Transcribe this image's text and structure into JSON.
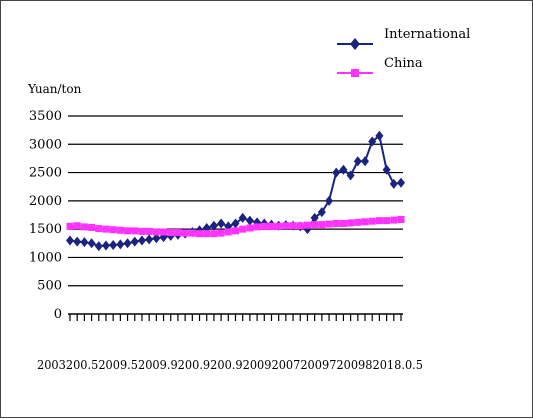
{
  "chart_data": {
    "type": "line",
    "ylabel": "Yuan/ton",
    "ylim": [
      0,
      3500
    ],
    "y_ticks": [
      "3500",
      "3000",
      "2500",
      "2000",
      "1500",
      "1000",
      "500",
      "0"
    ],
    "x_axis_text": "2003200.52009.52009.9200.9200.92009200720097200982018.0.5",
    "grid": true,
    "legend_position": "top-right",
    "series": [
      {
        "name": "International",
        "color": "#1a237e",
        "marker": "diamond",
        "values": [
          1300,
          1280,
          1270,
          1250,
          1200,
          1210,
          1220,
          1230,
          1250,
          1280,
          1300,
          1320,
          1340,
          1360,
          1380,
          1400,
          1420,
          1450,
          1480,
          1520,
          1560,
          1600,
          1550,
          1600,
          1700,
          1650,
          1620,
          1600,
          1580,
          1560,
          1570,
          1560,
          1550,
          1500,
          1700,
          1800,
          2000,
          2500,
          2550,
          2450,
          2700,
          2700,
          3050,
          3150,
          2550,
          2300,
          2320
        ]
      },
      {
        "name": "China",
        "color": "#ff33ff",
        "marker": "square",
        "values": [
          1550,
          1560,
          1540,
          1530,
          1510,
          1500,
          1490,
          1480,
          1470,
          1470,
          1460,
          1460,
          1450,
          1450,
          1440,
          1440,
          1430,
          1430,
          1420,
          1420,
          1420,
          1430,
          1450,
          1470,
          1500,
          1520,
          1540,
          1550,
          1550,
          1550,
          1560,
          1560,
          1560,
          1570,
          1580,
          1580,
          1590,
          1600,
          1600,
          1610,
          1620,
          1630,
          1640,
          1650,
          1650,
          1660,
          1670
        ]
      }
    ]
  }
}
